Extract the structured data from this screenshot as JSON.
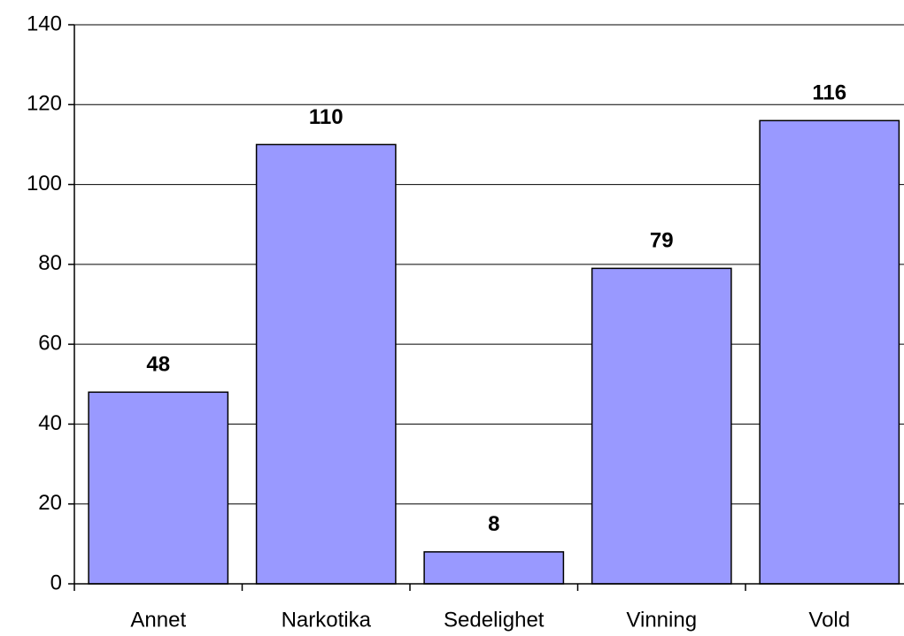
{
  "chart_data": {
    "type": "bar",
    "categories": [
      "Annet",
      "Narkotika",
      "Sedelighet",
      "Vinning",
      "Vold"
    ],
    "values": [
      48,
      110,
      8,
      79,
      116
    ],
    "color": "#9999ff",
    "ylim": [
      0,
      140
    ],
    "yticks": [
      0,
      20,
      40,
      60,
      80,
      100,
      120,
      140
    ],
    "grid": true
  }
}
